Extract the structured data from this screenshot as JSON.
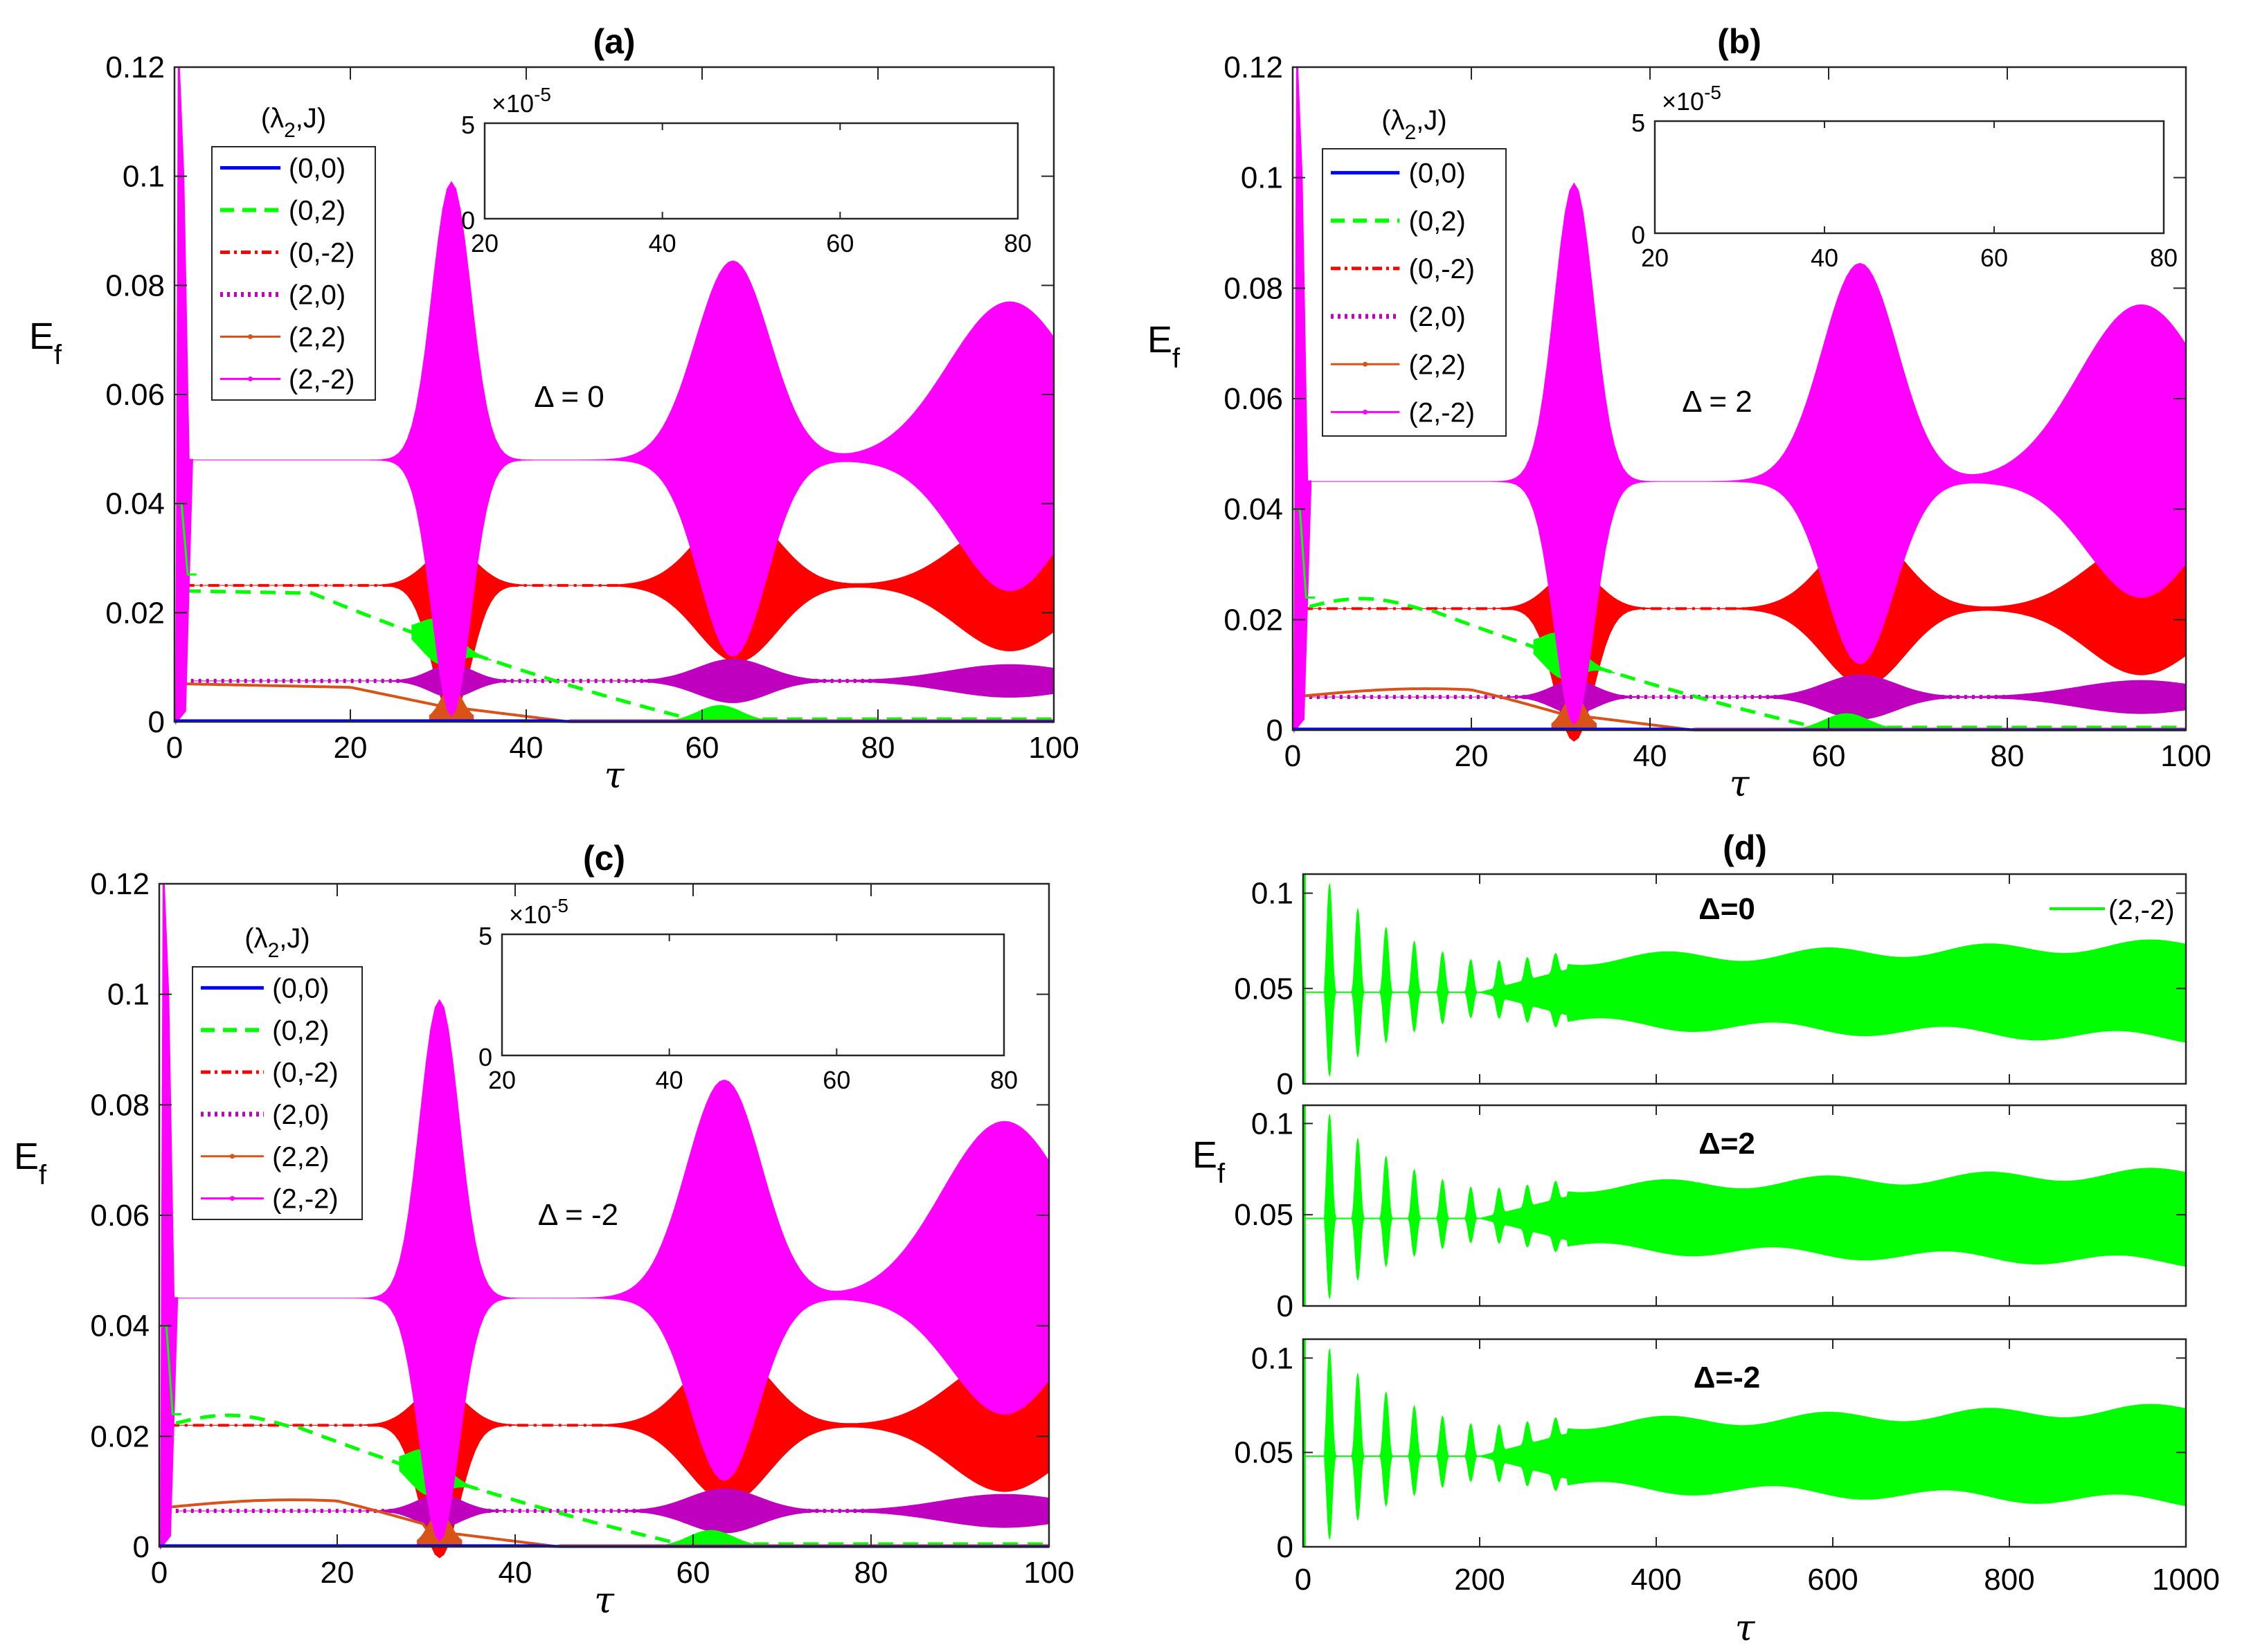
{
  "figure": {
    "panels": {
      "a": {
        "title": "(a)",
        "delta_label": "Δ = 0",
        "delta_value": 0
      },
      "b": {
        "title": "(b)",
        "delta_label": "Δ = 2",
        "delta_value": 2
      },
      "c": {
        "title": "(c)",
        "delta_label": "Δ = -2",
        "delta_value": -2
      },
      "d": {
        "title": "(d)"
      }
    },
    "ylabel": "E",
    "ylabel_sub": "f",
    "xlabel": "τ",
    "legend_title": "(λ",
    "legend_title_sub": "2",
    "legend_title_tail": ",J)",
    "inset_exponent_base": "×10",
    "inset_exponent_power": "-5"
  },
  "colors": {
    "blue": "#0000ff",
    "green": "#00ff00",
    "red": "#ff0000",
    "purple": "#bf00bf",
    "orange": "#d95319",
    "magenta": "#ff00ff",
    "axis": "#262626"
  },
  "chart_data": [
    {
      "id": "a",
      "type": "line",
      "title": "(a)",
      "xlabel": "τ",
      "ylabel": "E_f",
      "xlim": [
        0,
        100
      ],
      "ylim": [
        0,
        0.12
      ],
      "xticks": [
        0,
        20,
        40,
        60,
        80,
        100
      ],
      "yticks": [
        0,
        0.02,
        0.04,
        0.06,
        0.08,
        0.1,
        0.12
      ],
      "ytick_labels": [
        "0",
        "0.02",
        "0.04",
        "0.06",
        "0.08",
        "0.1",
        "0.12"
      ],
      "annotation": "Δ = 0",
      "series": [
        {
          "name": "(0,0)",
          "style": "solid",
          "color": "#0000ff",
          "plateau": 0.0
        },
        {
          "name": "(0,2)",
          "style": "dashed",
          "color": "#00ff00",
          "plateau": 0.024
        },
        {
          "name": "(0,-2)",
          "style": "dashdot",
          "color": "#ff0000",
          "plateau": 0.025
        },
        {
          "name": "(2,0)",
          "style": "dotted",
          "color": "#bf00bf",
          "plateau": 0.0075
        },
        {
          "name": "(2,2)",
          "style": "solid-marker",
          "color": "#d95319",
          "plateau": 0.007
        },
        {
          "name": "(2,-2)",
          "style": "solid-marker",
          "color": "#ff00ff",
          "plateau": 0.048
        }
      ],
      "inset": {
        "xlim": [
          20,
          80
        ],
        "ylim": [
          0,
          5
        ],
        "xticks": [
          20,
          40,
          60,
          80
        ],
        "yticks": [
          0,
          5
        ],
        "scale": "×10^-5"
      }
    },
    {
      "id": "b",
      "type": "line",
      "title": "(b)",
      "xlabel": "τ",
      "ylabel": "E_f",
      "xlim": [
        0,
        100
      ],
      "ylim": [
        0,
        0.12
      ],
      "xticks": [
        0,
        20,
        40,
        60,
        80,
        100
      ],
      "yticks": [
        0,
        0.02,
        0.04,
        0.06,
        0.08,
        0.1,
        0.12
      ],
      "ytick_labels": [
        "0",
        "0.02",
        "0.04",
        "0.06",
        "0.08",
        "0.1",
        "0.12"
      ],
      "annotation": "Δ = 2",
      "series": [
        {
          "name": "(0,0)",
          "style": "solid",
          "color": "#0000ff",
          "plateau": 0.0
        },
        {
          "name": "(0,2)",
          "style": "dashed",
          "color": "#00ff00",
          "plateau": 0.022
        },
        {
          "name": "(0,-2)",
          "style": "dashdot",
          "color": "#ff0000",
          "plateau": 0.022
        },
        {
          "name": "(2,0)",
          "style": "dotted",
          "color": "#bf00bf",
          "plateau": 0.006
        },
        {
          "name": "(2,2)",
          "style": "solid-marker",
          "color": "#d95319",
          "plateau": 0.006
        },
        {
          "name": "(2,-2)",
          "style": "solid-marker",
          "color": "#ff00ff",
          "plateau": 0.045
        }
      ],
      "inset": {
        "xlim": [
          20,
          80
        ],
        "ylim": [
          0,
          5
        ],
        "xticks": [
          20,
          40,
          60,
          80
        ],
        "yticks": [
          0,
          5
        ],
        "scale": "×10^-5"
      }
    },
    {
      "id": "c",
      "type": "line",
      "title": "(c)",
      "xlabel": "τ",
      "ylabel": "E_f",
      "xlim": [
        0,
        100
      ],
      "ylim": [
        0,
        0.12
      ],
      "xticks": [
        0,
        20,
        40,
        60,
        80,
        100
      ],
      "yticks": [
        0,
        0.02,
        0.04,
        0.06,
        0.08,
        0.1,
        0.12
      ],
      "ytick_labels": [
        "0",
        "0.02",
        "0.04",
        "0.06",
        "0.08",
        "0.1",
        "0.12"
      ],
      "annotation": "Δ = -2",
      "series": [
        {
          "name": "(0,0)",
          "style": "solid",
          "color": "#0000ff",
          "plateau": 0.0
        },
        {
          "name": "(0,2)",
          "style": "dashed",
          "color": "#00ff00",
          "plateau": 0.022
        },
        {
          "name": "(0,-2)",
          "style": "dashdot",
          "color": "#ff0000",
          "plateau": 0.022
        },
        {
          "name": "(2,0)",
          "style": "dotted",
          "color": "#bf00bf",
          "plateau": 0.0065
        },
        {
          "name": "(2,2)",
          "style": "solid-marker",
          "color": "#d95319",
          "plateau": 0.007
        },
        {
          "name": "(2,-2)",
          "style": "solid-marker",
          "color": "#ff00ff",
          "plateau": 0.045
        }
      ],
      "inset": {
        "xlim": [
          20,
          80
        ],
        "ylim": [
          0,
          5
        ],
        "xticks": [
          20,
          40,
          60,
          80
        ],
        "yticks": [
          0,
          5
        ],
        "scale": "×10^-5"
      }
    },
    {
      "id": "d",
      "type": "line",
      "title": "(d)",
      "xlabel": "τ",
      "ylabel": "E_f",
      "xlim": [
        0,
        1000
      ],
      "xticks": [
        0,
        200,
        400,
        600,
        800,
        1000
      ],
      "legend": "(2,-2)",
      "subplots": [
        {
          "annotation": "Δ=0",
          "ylim": [
            0,
            0.11
          ],
          "yticks": [
            0,
            0.05,
            0.1
          ],
          "ytick_labels": [
            "0",
            "0.05",
            "0.1"
          ],
          "color": "#00ff00"
        },
        {
          "annotation": "Δ=2",
          "ylim": [
            0,
            0.11
          ],
          "yticks": [
            0,
            0.05,
            0.1
          ],
          "ytick_labels": [
            "0",
            "0.05",
            "0.1"
          ],
          "color": "#00ff00"
        },
        {
          "annotation": "Δ=-2",
          "ylim": [
            0,
            0.11
          ],
          "yticks": [
            0,
            0.05,
            0.1
          ],
          "ytick_labels": [
            "0",
            "0.05",
            "0.1"
          ],
          "color": "#00ff00"
        }
      ]
    }
  ]
}
